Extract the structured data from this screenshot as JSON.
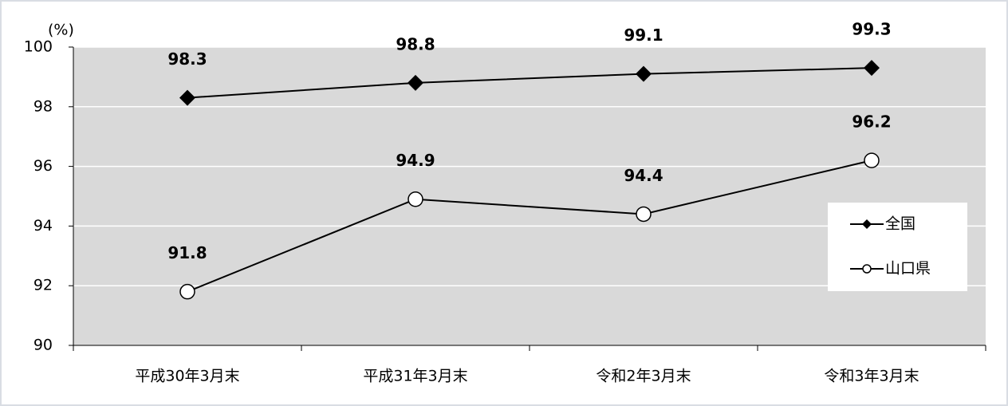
{
  "chart_data": {
    "type": "line",
    "y_unit": "(%)",
    "categories": [
      "平成30年3月末",
      "平成31年3月末",
      "令和2年3月末",
      "令和3年3月末"
    ],
    "series": [
      {
        "name": "全国",
        "color": "#000000",
        "marker": "diamond",
        "values": [
          98.3,
          98.8,
          99.1,
          99.3
        ]
      },
      {
        "name": "山口県",
        "color": "#000000",
        "marker": "circle",
        "values": [
          91.8,
          94.9,
          94.4,
          96.2
        ]
      }
    ],
    "ylim": [
      90,
      100
    ],
    "yticks": [
      90,
      92,
      94,
      96,
      98,
      100
    ],
    "grid": true,
    "legend": "right"
  }
}
